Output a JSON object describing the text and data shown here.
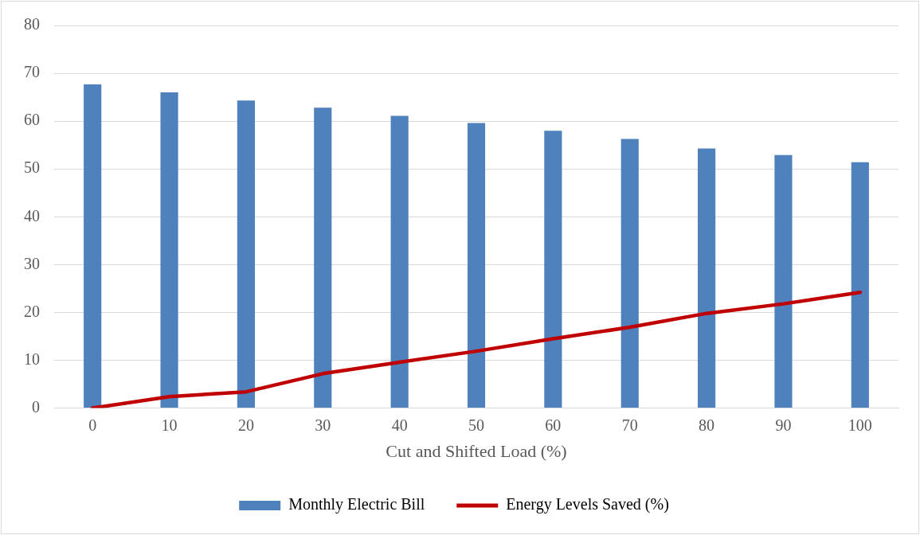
{
  "chart_data": {
    "type": "bar",
    "xlabel": "Cut and Shifted Load (%)",
    "categories": [
      "0",
      "10",
      "20",
      "30",
      "40",
      "50",
      "60",
      "70",
      "80",
      "90",
      "100"
    ],
    "series": [
      {
        "name": "Monthly Electric Bill",
        "color": "#4f81bd",
        "values": [
          67.7,
          66.0,
          64.3,
          62.8,
          61.1,
          59.6,
          58.0,
          56.3,
          54.3,
          52.9,
          51.4
        ]
      },
      {
        "name": "Energy Levels Saved (%)",
        "type": "line",
        "color": "#c00000",
        "values": [
          0,
          2.4,
          3.4,
          7.2,
          9.6,
          11.9,
          14.5,
          16.9,
          19.8,
          21.8,
          24.2
        ]
      }
    ],
    "ylim": [
      0,
      80
    ],
    "yticks": [
      0,
      10,
      20,
      30,
      40,
      50,
      60,
      70,
      80
    ],
    "grid": "y",
    "legend": "bottom",
    "marker": "none"
  }
}
